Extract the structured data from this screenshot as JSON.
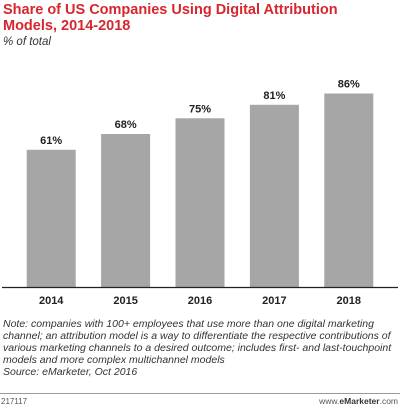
{
  "header": {
    "title": "Share of US Companies Using Digital Attribution Models, 2014-2018",
    "subtitle": "% of total"
  },
  "chart_data": {
    "type": "bar",
    "title": "Share of US Companies Using Digital Attribution Models, 2014-2018",
    "subtitle": "% of total",
    "categories": [
      "2014",
      "2015",
      "2016",
      "2017",
      "2018"
    ],
    "values": [
      61,
      68,
      75,
      81,
      86
    ],
    "value_labels": [
      "61%",
      "68%",
      "75%",
      "81%",
      "86%"
    ],
    "xlabel": "",
    "ylabel": "",
    "ylim": [
      0,
      100
    ],
    "grid": false,
    "bar_color": "#a6a6a6"
  },
  "footer": {
    "note": "Note: companies with 100+ employees that use more than one digital marketing channel; an attribution model is a way to differentiate the respective contributions of various marketing channels to a desired outcome; includes first- and last-touchpoint models and more complex multichannel models",
    "source": "Source: eMarketer, Oct 2016",
    "chart_id": "217117",
    "brand_prefix": "www.",
    "brand_name": "eMarketer",
    "brand_suffix": ".com"
  },
  "colors": {
    "title": "#d7262d",
    "bar": "#a6a6a6",
    "axis": "#222222"
  }
}
